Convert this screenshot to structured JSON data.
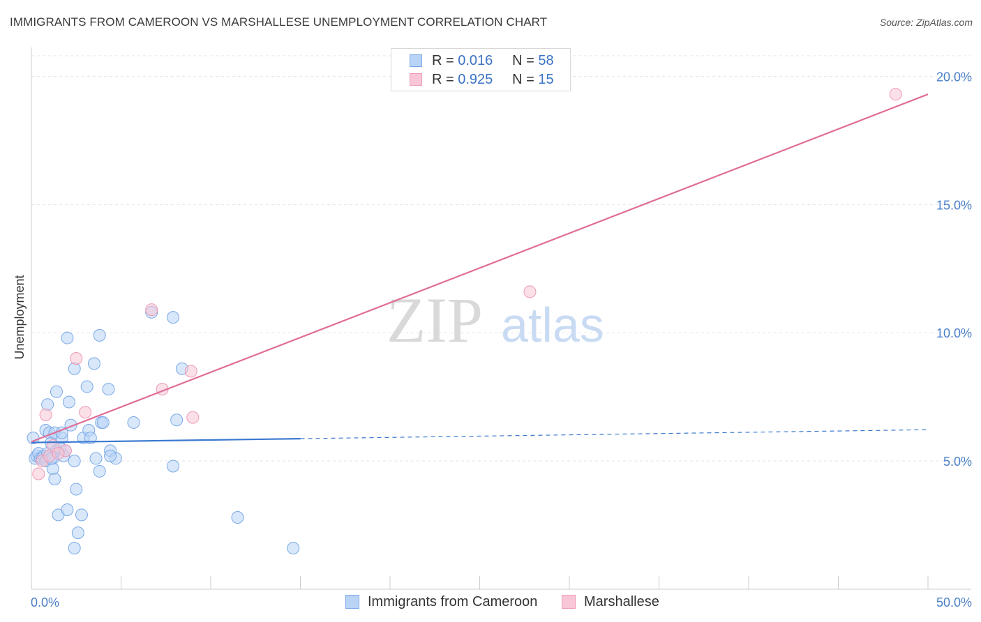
{
  "title": "IMMIGRANTS FROM CAMEROON VS MARSHALLESE UNEMPLOYMENT CORRELATION CHART",
  "source": "Source: ZipAtlas.com",
  "watermark": {
    "zip": "ZIP",
    "atlas": "atlas"
  },
  "legend": {
    "rows": [
      {
        "r_label": "R =",
        "r_value": "0.016",
        "n_label": "N =",
        "n_value": "58"
      },
      {
        "r_label": "R =",
        "r_value": "0.925",
        "n_label": "N =",
        "n_value": "15"
      }
    ]
  },
  "colors": {
    "blue_fill": "#b8d3f5",
    "blue_stroke": "#7aa9e6",
    "blue_line": "#3a78d0",
    "pink_fill": "#f8c6d6",
    "pink_stroke": "#ee9ab5",
    "pink_line": "#e06d98",
    "tick_text": "#4a7fc8",
    "grid": "#e4e4e4"
  },
  "chart_data": {
    "type": "scatter",
    "title": "IMMIGRANTS FROM CAMEROON VS MARSHALLESE UNEMPLOYMENT CORRELATION CHART",
    "xlabel": "",
    "ylabel": "Unemployment",
    "xlim": [
      0,
      50
    ],
    "ylim": [
      0,
      20.8
    ],
    "x_tick_labels": [
      {
        "value": 0,
        "label": "0.0%"
      },
      {
        "value": 50,
        "label": "50.0%"
      }
    ],
    "y_tick_labels": [
      {
        "value": 5,
        "label": "5.0%"
      },
      {
        "value": 10,
        "label": "10.0%"
      },
      {
        "value": 15,
        "label": "15.0%"
      },
      {
        "value": 20,
        "label": "20.0%"
      }
    ],
    "series": [
      {
        "name": "Immigrants from Cameroon",
        "color": "blue",
        "points": [
          [
            0.1,
            5.9
          ],
          [
            0.2,
            5.1
          ],
          [
            0.3,
            5.2
          ],
          [
            0.4,
            5.3
          ],
          [
            0.5,
            5.1
          ],
          [
            0.6,
            5.1
          ],
          [
            0.7,
            5.2
          ],
          [
            0.8,
            5.0
          ],
          [
            0.8,
            6.2
          ],
          [
            0.9,
            7.2
          ],
          [
            0.9,
            5.3
          ],
          [
            1.0,
            6.1
          ],
          [
            1.1,
            5.7
          ],
          [
            1.2,
            5.1
          ],
          [
            1.2,
            4.7
          ],
          [
            1.3,
            6.1
          ],
          [
            1.3,
            4.3
          ],
          [
            1.4,
            5.4
          ],
          [
            1.4,
            7.7
          ],
          [
            1.5,
            2.9
          ],
          [
            1.6,
            5.5
          ],
          [
            1.7,
            5.9
          ],
          [
            1.7,
            6.1
          ],
          [
            1.8,
            5.2
          ],
          [
            1.9,
            5.4
          ],
          [
            2.0,
            3.1
          ],
          [
            2.1,
            7.3
          ],
          [
            2.2,
            6.4
          ],
          [
            2.4,
            8.6
          ],
          [
            2.4,
            5.0
          ],
          [
            2.5,
            3.9
          ],
          [
            2.6,
            2.2
          ],
          [
            2.8,
            2.9
          ],
          [
            2.9,
            5.9
          ],
          [
            3.1,
            7.9
          ],
          [
            3.2,
            6.2
          ],
          [
            3.3,
            5.9
          ],
          [
            3.5,
            8.8
          ],
          [
            3.6,
            5.1
          ],
          [
            3.8,
            4.6
          ],
          [
            3.9,
            6.5
          ],
          [
            4.0,
            6.5
          ],
          [
            4.3,
            7.8
          ],
          [
            4.4,
            5.4
          ],
          [
            4.7,
            5.1
          ],
          [
            5.7,
            6.5
          ],
          [
            6.7,
            10.8
          ],
          [
            7.9,
            4.8
          ],
          [
            8.1,
            6.6
          ],
          [
            8.4,
            8.6
          ],
          [
            11.5,
            2.8
          ],
          [
            14.6,
            1.6
          ],
          [
            2.4,
            1.6
          ],
          [
            4.4,
            5.2
          ],
          [
            3.8,
            9.9
          ],
          [
            7.9,
            10.6
          ],
          [
            1.1,
            5.1
          ],
          [
            2.0,
            9.8
          ]
        ],
        "trend": {
          "x0": 0,
          "y0": 5.72,
          "x1": 15,
          "y1": 5.87,
          "dash_x1": 50,
          "dash_y1": 6.22
        }
      },
      {
        "name": "Marshallese",
        "color": "pink",
        "points": [
          [
            0.4,
            4.5
          ],
          [
            0.6,
            5.0
          ],
          [
            0.8,
            6.8
          ],
          [
            1.0,
            5.2
          ],
          [
            1.2,
            5.6
          ],
          [
            1.9,
            5.4
          ],
          [
            2.5,
            9.0
          ],
          [
            3.0,
            6.9
          ],
          [
            6.7,
            10.9
          ],
          [
            7.3,
            7.8
          ],
          [
            8.9,
            8.5
          ],
          [
            9.0,
            6.7
          ],
          [
            27.8,
            11.6
          ],
          [
            48.2,
            19.3
          ],
          [
            1.5,
            5.3
          ]
        ],
        "trend": {
          "x0": 0,
          "y0": 5.75,
          "x1": 50,
          "y1": 19.3
        }
      }
    ]
  }
}
